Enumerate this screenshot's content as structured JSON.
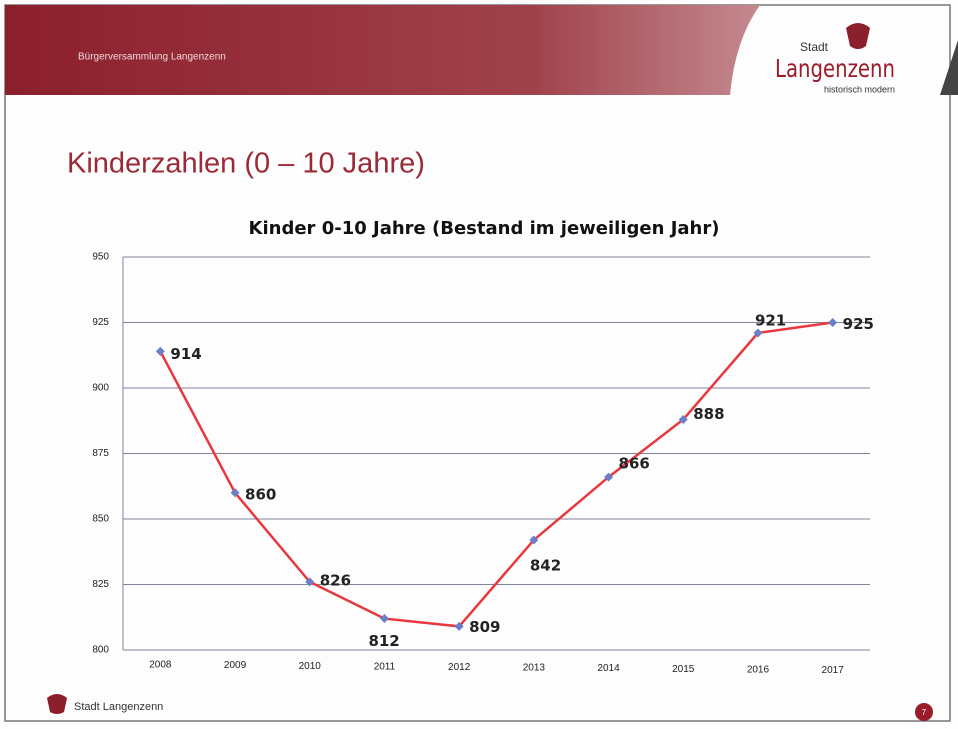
{
  "header": {
    "title": "Bürgerversammlung Langenzenn",
    "logo": {
      "top": "Stadt",
      "name": "Langenzenn",
      "tagline": "historisch modern"
    }
  },
  "slide_title": "Kinderzahlen (0 – 10 Jahre)",
  "chart_data": {
    "type": "line",
    "title": "Kinder 0-10 Jahre (Bestand im jeweiligen Jahr)",
    "categories": [
      "2008",
      "2009",
      "2010",
      "2011",
      "2012",
      "2013",
      "2014",
      "2015",
      "2016",
      "2017"
    ],
    "values": [
      914,
      860,
      826,
      812,
      809,
      842,
      866,
      888,
      921,
      925
    ],
    "color": "#e8383d",
    "marker_color": "#6b7fc9",
    "ylim": [
      800,
      950
    ],
    "yticks": [
      800,
      825,
      850,
      875,
      900,
      925,
      950
    ],
    "grid": true
  },
  "footer": {
    "logo_text": "Stadt Langenzenn",
    "page": "7"
  }
}
